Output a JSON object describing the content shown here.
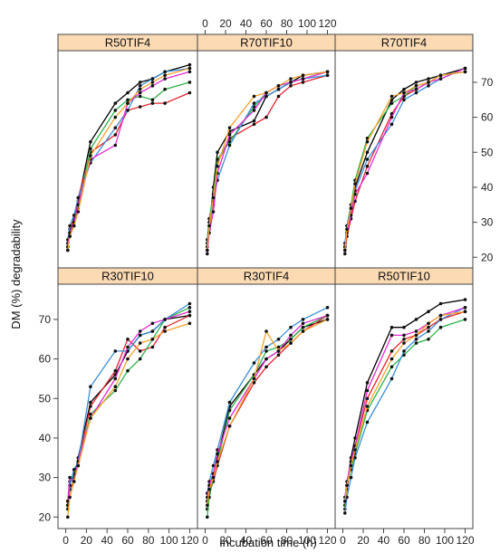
{
  "chart_data": {
    "type": "line",
    "layout": "trellis 3x2",
    "xlabel": "Incubation time (h)",
    "ylabel": "DM (%) degradability",
    "xlim": [
      -4,
      124
    ],
    "ylim": [
      18,
      78
    ],
    "x_ticks": [
      0,
      20,
      40,
      60,
      80,
      100,
      120
    ],
    "y_ticks": [
      20,
      30,
      40,
      50,
      60,
      70
    ],
    "x": [
      2,
      4,
      8,
      12,
      24,
      48,
      60,
      72,
      84,
      96,
      120
    ],
    "colors": {
      "strip": "#fcdab4",
      "series": [
        "#000000",
        "#e3262f",
        "#2db34a",
        "#3b8fd6",
        "#e42cd1",
        "#f2a32e"
      ]
    },
    "panels": [
      {
        "label": "R50TIF4",
        "series": [
          {
            "values": [
              23,
              27,
              30,
              36,
              53,
              64,
              67,
              70,
              71,
              73,
              75
            ]
          },
          {
            "values": [
              24,
              28,
              31,
              37,
              50,
              55,
              62,
              63,
              64,
              64,
              67
            ]
          },
          {
            "values": [
              22,
              26,
              29,
              34,
              51,
              62,
              65,
              66,
              65,
              68,
              70
            ]
          },
          {
            "values": [
              25,
              29,
              32,
              37,
              47,
              57,
              62,
              69,
              71,
              73,
              74
            ]
          },
          {
            "values": [
              23,
              27,
              30,
              35,
              48,
              52,
              64,
              67,
              69,
              71,
              73
            ]
          },
          {
            "values": [
              22,
              26,
              29,
              33,
              49,
              60,
              64,
              68,
              70,
              72,
              74
            ]
          }
        ]
      },
      {
        "label": "R70TIF10",
        "series": [
          {
            "values": [
              22,
              28,
              40,
              50,
              56,
              59,
              66,
              68,
              70,
              72,
              73
            ]
          },
          {
            "values": [
              24,
              29,
              35,
              47,
              54,
              58,
              60,
              66,
              69,
              70,
              72
            ]
          },
          {
            "values": [
              25,
              31,
              38,
              48,
              53,
              63,
              67,
              69,
              70,
              71,
              73
            ]
          },
          {
            "values": [
              23,
              30,
              36,
              42,
              52,
              64,
              66,
              68,
              70,
              71,
              72
            ]
          },
          {
            "values": [
              21,
              27,
              33,
              44,
              55,
              62,
              67,
              69,
              70,
              71,
              73
            ]
          },
          {
            "values": [
              22,
              29,
              37,
              46,
              57,
              66,
              67,
              69,
              71,
              72,
              73
            ]
          }
        ]
      },
      {
        "label": "R70TIF4",
        "series": [
          {
            "values": [
              22,
              28,
              33,
              40,
              50,
              65,
              68,
              70,
              71,
              72,
              74
            ]
          },
          {
            "values": [
              21,
              26,
              31,
              36,
              46,
              61,
              66,
              68,
              70,
              72,
              73
            ]
          },
          {
            "values": [
              23,
              29,
              35,
              42,
              54,
              64,
              66,
              69,
              70,
              72,
              73
            ]
          },
          {
            "values": [
              24,
              29,
              34,
              39,
              48,
              58,
              65,
              67,
              69,
              71,
              74
            ]
          },
          {
            "values": [
              23,
              27,
              32,
              38,
              44,
              60,
              67,
              68,
              70,
              71,
              74
            ]
          },
          {
            "values": [
              22,
              28,
              34,
              41,
              53,
              66,
              67,
              69,
              70,
              72,
              73
            ]
          }
        ]
      },
      {
        "label": "R30TIF10",
        "series": [
          {
            "values": [
              23,
              29,
              30,
              35,
              49,
              56,
              62,
              66,
              67,
              70,
              71
            ]
          },
          {
            "values": [
              22,
              27,
              29,
              34,
              48,
              57,
              65,
              62,
              63,
              68,
              71
            ]
          },
          {
            "values": [
              24,
              28,
              31,
              33,
              46,
              52,
              57,
              60,
              65,
              70,
              73
            ]
          },
          {
            "values": [
              23,
              28,
              32,
              34,
              53,
              62,
              62,
              66,
              67,
              70,
              74
            ]
          },
          {
            "values": [
              24,
              30,
              29,
              34,
              45,
              55,
              63,
              67,
              69,
              70,
              72
            ]
          },
          {
            "values": [
              20,
              25,
              29,
              33,
              45,
              53,
              60,
              64,
              65,
              67,
              69
            ]
          }
        ]
      },
      {
        "label": "R30TIF4",
        "series": [
          {
            "values": [
              24,
              27,
              30,
              35,
              48,
              56,
              60,
              62,
              65,
              68,
              70
            ]
          },
          {
            "values": [
              22,
              26,
              29,
              33,
              43,
              54,
              58,
              61,
              64,
              67,
              71
            ]
          },
          {
            "values": [
              20,
              25,
              30,
              34,
              47,
              56,
              62,
              63,
              65,
              68,
              71
            ]
          },
          {
            "values": [
              26,
              29,
              33,
              37,
              49,
              59,
              63,
              65,
              68,
              70,
              73
            ]
          },
          {
            "values": [
              25,
              28,
              31,
              36,
              45,
              55,
              60,
              62,
              66,
              69,
              71
            ]
          },
          {
            "values": [
              23,
              27,
              30,
              34,
              43,
              55,
              67,
              62,
              64,
              67,
              70
            ]
          }
        ]
      },
      {
        "label": "R50TIF10",
        "series": [
          {
            "values": [
              24,
              28,
              35,
              40,
              54,
              68,
              68,
              70,
              72,
              74,
              75
            ]
          },
          {
            "values": [
              23,
              27,
              33,
              38,
              50,
              62,
              65,
              66,
              68,
              70,
              72
            ]
          },
          {
            "values": [
              22,
              28,
              32,
              36,
              47,
              58,
              61,
              64,
              65,
              68,
              70
            ]
          },
          {
            "values": [
              21,
              25,
              30,
              35,
              44,
              55,
              62,
              65,
              67,
              70,
              73
            ]
          },
          {
            "values": [
              25,
              29,
              34,
              38,
              52,
              66,
              66,
              67,
              69,
              71,
              73
            ]
          },
          {
            "values": [
              24,
              28,
              33,
              37,
              48,
              60,
              64,
              66,
              69,
              71,
              72
            ]
          }
        ]
      }
    ]
  }
}
